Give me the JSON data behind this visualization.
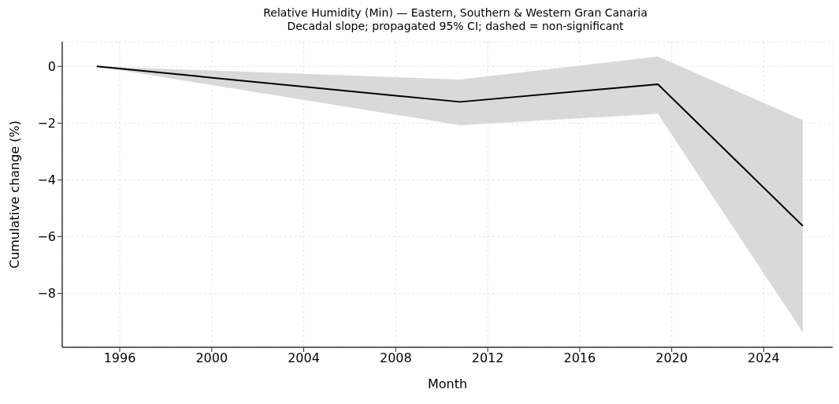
{
  "chart_data": {
    "type": "line",
    "title": "Relative Humidity (Min) — Eastern, Southern & Western Gran Canaria",
    "subtitle": "Decadal slope; propagated 95% CI; dashed = non-significant",
    "xlabel": "Month",
    "ylabel": "Cumulative change (%)",
    "x": [
      1995.0,
      2010.8,
      2019.4,
      2025.7
    ],
    "series": [
      {
        "color": "#000000",
        "values": [
          0,
          -1.25,
          -0.63,
          -5.62
        ],
        "lower": [
          0,
          -2.07,
          -1.67,
          -9.37
        ],
        "upper": [
          0,
          -0.46,
          0.35,
          -1.89
        ]
      }
    ],
    "xlim": [
      1993.5,
      2027
    ],
    "xticks": [
      1996,
      2000,
      2004,
      2008,
      2012,
      2016,
      2020,
      2024
    ],
    "ylim": [
      -9.9,
      0.87
    ],
    "yticks": [
      -8,
      -6,
      -4,
      -2,
      0
    ],
    "grid": true,
    "line_style": "solid"
  }
}
